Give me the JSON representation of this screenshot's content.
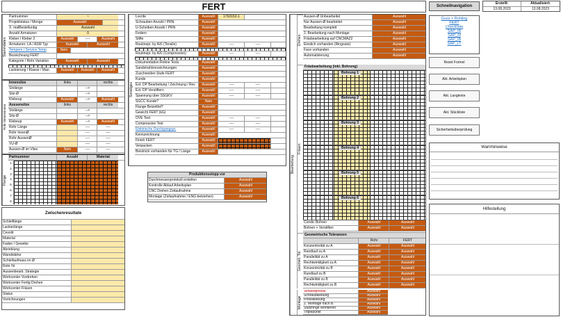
{
  "page_title": "FERT",
  "header": {
    "schnellnav_label": "Schnellnavigation",
    "erstellt_label": "Erstellt:",
    "erstellt_date": "13.08.2023",
    "aktualisiert_label": "Aktualisiert:",
    "aktualisiert_date": "13.08.2023"
  },
  "nav_links": [
    "Guss + Rohling",
    "FERT",
    "Checkliste",
    "SAP_IB",
    "SAP_M",
    "SAP_IB",
    "SAP_LT"
  ],
  "buttons": [
    "Reset Formel",
    "Akt. Arbeitsplan",
    "Akt. Langtexte",
    "Akt. Stückliste",
    "Sicherheitsüberprüfung"
  ],
  "right_headers": {
    "warnhinweise": "Warnhinweise",
    "hilfestellung": "Hilfestellung"
  },
  "common": {
    "auswahl": "Auswahl",
    "dash": "----",
    "arrow": "-->",
    "nein": "Nein"
  },
  "stammdaten": {
    "side_label": "Stammdaten",
    "rows": [
      "Partnummer",
      "Projektstatus / Menge",
      "X. malBestellunbg",
      "Anzahl Armaturen",
      "Kleber / Kleber 2",
      "Armaturen; LA / ASM Typ",
      "Tempern / Service Temp",
      "Bezeichnung FERT",
      "Kategorie / Rohr Variation",
      "",
      "Lackierung / Klasse / Man."
    ],
    "armaturen_value": "0"
  },
  "rohr": {
    "side_label": "Rohr",
    "side_label2": "Dimensionen",
    "innen_header": "Innensitze",
    "innen_cols": [
      "links",
      "",
      "rechts"
    ],
    "innen_rows": [
      "Stolänge",
      "Sitz-Ø",
      "Klebeup"
    ],
    "aussen_header": "Aussensitze",
    "aussen_cols": [
      "links",
      "",
      "rechts"
    ],
    "aussen_rows": [
      "Stolänge",
      "Sitz-Ø",
      "Klebeup",
      "Rohr Länge",
      "Rohr InnenØ",
      "Rohr AussenØ",
      "VU-Ø",
      "Aussen-Ø im Vlies"
    ],
    "cut_label": "Cut"
  },
  "flange": {
    "side_label": "Flange",
    "header": [
      "Partnummer",
      "Anzahl",
      "Material"
    ],
    "row_numbers": [
      "1",
      "2",
      "3",
      "4",
      "5",
      "6",
      "7",
      "8"
    ]
  },
  "zwischen": {
    "header": "Zwischenresultate",
    "rows": [
      "Schleiflänge",
      "Lackierlänge",
      "Cevolit",
      "Material",
      "Faden / Gewebe",
      "Abrieblung",
      "Wandstärke",
      "Schleifaufmass im Ø",
      "Rohr Nr",
      "Aussenbearb. Strategie",
      "Workcenter Vordrehen",
      "Workcenter Fertig Drehen",
      "Workcenter Fräsen",
      "Status",
      "Vorrichnungen"
    ]
  },
  "sonstiges": {
    "side_label": "Sonstiges",
    "loctite_value": "1763152-1",
    "rows": [
      "Locrite",
      "Schrauben Anzahl / PRN",
      "U-Scheiben Anzahl / PRN",
      "Federn",
      "Stifte",
      "Routinepr. by AXI (Tensile)",
      "kN / s / min",
      "Routinepr. by AXI (Compression)",
      "kN / s / min",
      "Dokumentation Rotine Tests",
      "Sandstrahlvorzeichnungen",
      "Zuschneiden Stufe FERT",
      "Kunde",
      "Ext. DP Bearbeitung / Zeichnung / Rev",
      "Ext. DP Verstiftern",
      "Spannung über SSGKV",
      "SGCC Kunde?",
      "Flange Beizeittel?",
      "Gewicht FERT (kG)",
      "OVE Test",
      "Compressive Test",
      "Elektrische Durchgangspr.",
      "Kennzeichnung",
      "Finish FERT",
      "Verpacken",
      "Beistrück vorhanden für TG / Länge"
    ]
  },
  "produktionsstopp": {
    "header": "Produktionsstopp vor",
    "rows": [
      "Durchmesserprotokoll erstellen",
      "Kontrolle Ablauf Arbeitsplan",
      "CNC Drehen Zeitaufnahme",
      "Montage (Zeitaufnahme / ENG betziehen)"
    ]
  },
  "bearbeitung": {
    "side_label": "Bearbeitung",
    "drehen_label": "Drehen",
    "drehen_rows": [
      "Aussen-Ø Unbearbeitet",
      "Nur Aussen-Ø bearbeitet",
      "Bearbeitung komplett",
      "2. Bearbeitung nach Montage",
      "Fräsbearbeitung auf CNCMAZ2",
      "Einstich vorhanden (Ringnute)",
      "Face vorhanden",
      "Automatisierung"
    ],
    "fraesen_label": "Fräsen",
    "fraesen_header": "Fräsbearbeitung (inkl. Bohrung)",
    "bohrung_labels": [
      "Bohrung 1",
      "Bohrung 2",
      "Bohrung 3",
      "Bohrung 4",
      "Bohrung 5",
      "Bohrung 6"
    ],
    "bohrungen_rows": [
      "Condic Bohren",
      "Bohren + Verstiften"
    ],
    "geom_label": "Geometr. Tol.",
    "geom_header": "Geometrische Toleranzen",
    "geom_cols": [
      "",
      "Rohr",
      "FERT"
    ],
    "geom_rows": [
      "Konzentrizität zu A",
      "Rundlauf zu A",
      "Parallelität zu A",
      "Rechtwinkligkeit zu A",
      "Konzentrizität zu B",
      "Rundlauf zu B",
      "Parallelität zu B",
      "Rechtwinkligkeit zu B"
    ],
    "montage_label": "Montage",
    "montage_rows": [
      "Verklebpresse",
      "Schraubklebung",
      "Pressklebung",
      "Z. Montage nach B.",
      "Stützringe Montieren",
      "Triplepunkt"
    ]
  }
}
